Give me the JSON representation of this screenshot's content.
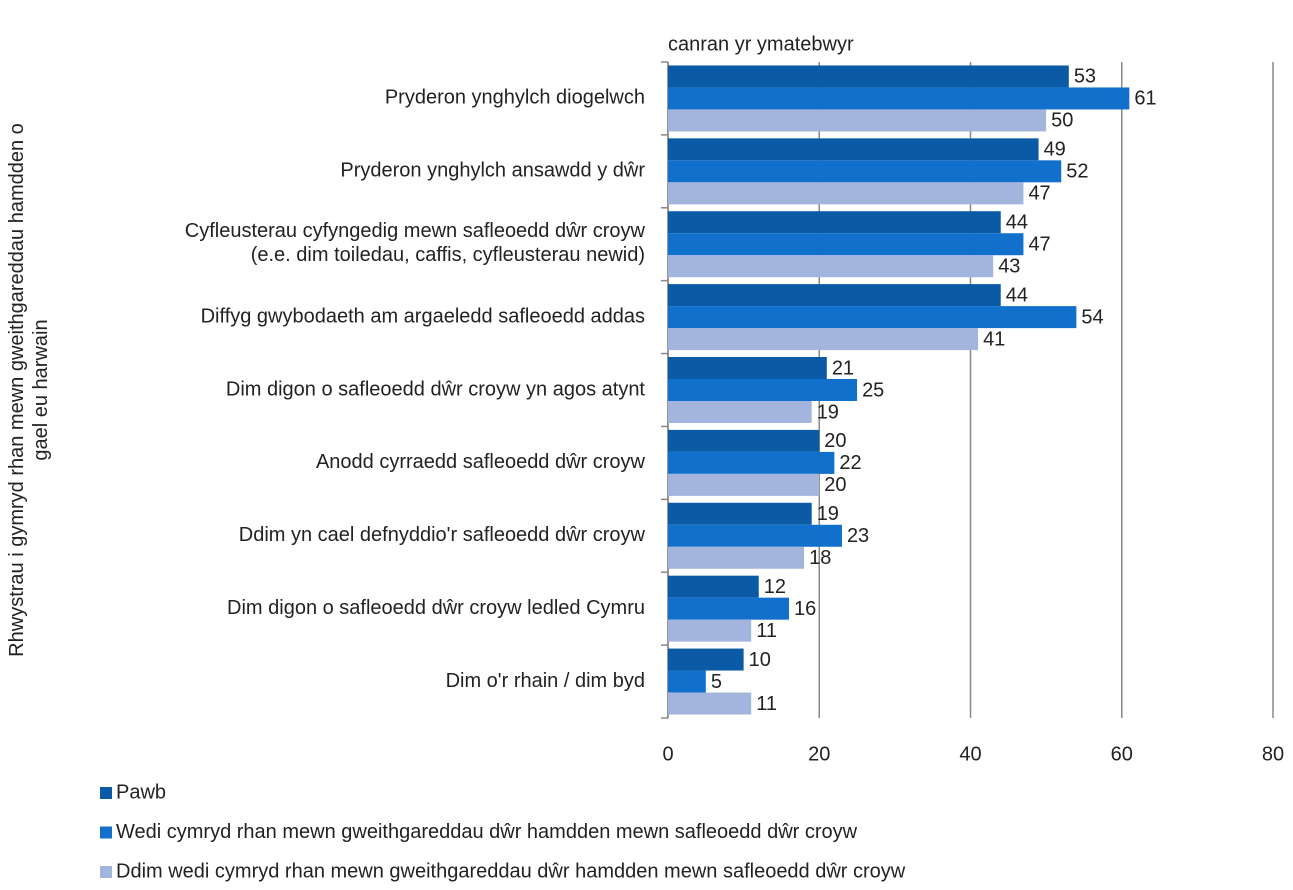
{
  "chart_data": {
    "type": "bar",
    "orientation": "horizontal",
    "x_label": "canran yr ymatebwyr",
    "y_label": "Rhwystrau i gymryd rhan mewn gweithgareddau hamdden o\ngael eu harwain",
    "categories": [
      "Pryderon ynghylch diogelwch",
      "Pryderon ynghylch ansawdd y dŵr",
      "Cyfleusterau cyfyngedig mewn safleoedd dŵr croyw\n(e.e. dim toiledau, caffis, cyfleusterau newid)",
      "Diffyg gwybodaeth am argaeledd safleoedd addas",
      "Dim digon o safleoedd dŵr croyw yn agos atynt",
      "Anodd cyrraedd safleoedd dŵr croyw",
      "Ddim yn cael defnyddio'r safleoedd dŵr croyw",
      "Dim digon o safleoedd dŵr croyw ledled Cymru",
      "Dim o'r rhain / dim byd"
    ],
    "series": [
      {
        "name": "Pawb",
        "color": "#0b5aa5",
        "values": [
          53,
          49,
          44,
          44,
          21,
          20,
          19,
          12,
          10
        ]
      },
      {
        "name": "Wedi cymryd rhan mewn gweithgareddau dŵr hamdden mewn safleoedd dŵr croyw",
        "color": "#1170cc",
        "values": [
          61,
          52,
          47,
          54,
          25,
          22,
          23,
          16,
          5
        ]
      },
      {
        "name": "Ddim wedi cymryd rhan mewn gweithgareddau dŵr hamdden mewn safleoedd dŵr croyw",
        "color": "#a3b4dd",
        "values": [
          50,
          47,
          43,
          41,
          19,
          20,
          18,
          11,
          11
        ]
      }
    ],
    "xlim": [
      0,
      80
    ],
    "xticks": [
      0,
      20,
      40,
      60,
      80
    ],
    "grid": true,
    "legend": "bottom"
  }
}
